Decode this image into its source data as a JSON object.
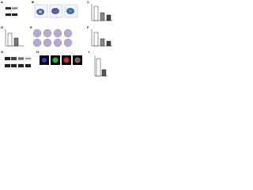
{
  "figure": {
    "panels": [
      "A",
      "B",
      "C",
      "D",
      "E",
      "F",
      "G",
      "H",
      "I"
    ]
  }
}
